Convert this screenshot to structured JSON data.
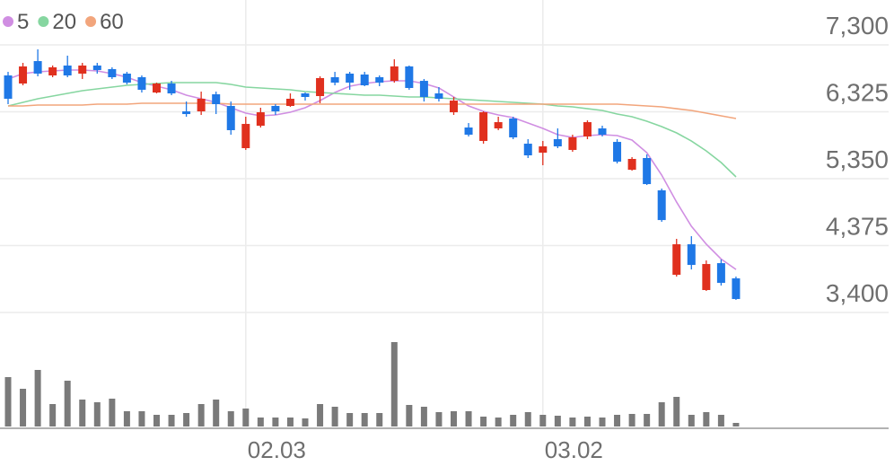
{
  "chart_data": {
    "type": "candlestick",
    "categories": [
      null,
      null,
      null,
      null,
      null,
      null,
      null,
      null,
      null,
      null,
      null,
      null,
      null,
      null,
      null,
      null,
      "02.03",
      null,
      null,
      null,
      null,
      null,
      null,
      null,
      null,
      null,
      null,
      null,
      null,
      null,
      null,
      null,
      null,
      null,
      null,
      null,
      "03.02",
      null,
      null,
      null,
      null,
      null,
      null,
      null,
      null,
      null,
      null,
      null,
      null,
      null
    ],
    "open": [
      6855,
      6737,
      7064,
      6855,
      6999,
      6881,
      6999,
      6947,
      6881,
      6829,
      6606,
      6737,
      6331,
      6331,
      6580,
      6410,
      5795,
      6122,
      6410,
      6410,
      6593,
      6554,
      6829,
      6881,
      6868,
      6829,
      6776,
      6986,
      6776,
      6593,
      6318,
      6096,
      5900,
      6083,
      6227,
      5860,
      5729,
      5926,
      5769,
      5965,
      6083,
      5886,
      5480,
      5651,
      5180,
      3949,
      4394,
      3727,
      4119,
      3897
    ],
    "high": [
      6907,
      7038,
      7235,
      7000,
      7143,
      7038,
      7038,
      6973,
      6907,
      6855,
      6750,
      6776,
      6475,
      6619,
      6619,
      6475,
      6253,
      6384,
      6436,
      6593,
      6606,
      6842,
      6907,
      6907,
      6907,
      6855,
      7090,
      6999,
      6803,
      6685,
      6541,
      6161,
      6331,
      6253,
      6253,
      5926,
      5900,
      6083,
      5991,
      6200,
      6122,
      5926,
      5664,
      5703,
      5206,
      4473,
      4512,
      4158,
      4172,
      3923
    ],
    "low": [
      6436,
      6711,
      6842,
      6829,
      6829,
      6803,
      6881,
      6803,
      6724,
      6606,
      6593,
      6567,
      6253,
      6279,
      6292,
      5991,
      5769,
      6096,
      6279,
      6397,
      6488,
      6449,
      6711,
      6646,
      6698,
      6698,
      6750,
      6646,
      6475,
      6475,
      6279,
      5965,
      5860,
      6057,
      5926,
      5651,
      5546,
      5795,
      5742,
      5926,
      5965,
      5572,
      5467,
      5258,
      4721,
      3923,
      4027,
      3714,
      3792,
      3583
    ],
    "close": [
      6515,
      6986,
      6881,
      6973,
      6855,
      6999,
      6933,
      6829,
      6750,
      6646,
      6737,
      6593,
      6292,
      6515,
      6436,
      6057,
      6148,
      6318,
      6331,
      6515,
      6541,
      6816,
      6750,
      6750,
      6711,
      6750,
      6986,
      6672,
      6541,
      6515,
      6488,
      5991,
      6318,
      6174,
      5952,
      5690,
      5821,
      5821,
      5952,
      6174,
      5991,
      5598,
      5638,
      5271,
      4747,
      4394,
      4093,
      4106,
      3831,
      3596
    ],
    "up_color": "#e0301e",
    "down_color": "#1f78e6",
    "ylim": [
      3400,
      7300
    ],
    "yticks": [
      {
        "value": 3400,
        "label": "3,400"
      },
      {
        "value": 4375,
        "label": "4,375"
      },
      {
        "value": 5350,
        "label": "5,350"
      },
      {
        "value": 6325,
        "label": "6,325"
      },
      {
        "value": 7300,
        "label": "7,300"
      }
    ],
    "grid": true,
    "series": [
      {
        "name": "5",
        "color": "#d08ee2",
        "values": [
          6803,
          6881,
          6907,
          6920,
          6933,
          6933,
          6920,
          6881,
          6829,
          6750,
          6698,
          6646,
          6567,
          6515,
          6462,
          6384,
          6305,
          6266,
          6279,
          6318,
          6384,
          6488,
          6606,
          6698,
          6737,
          6763,
          6776,
          6776,
          6737,
          6672,
          6541,
          6410,
          6331,
          6279,
          6240,
          6161,
          6083,
          5991,
          5952,
          5978,
          5991,
          5978,
          5913,
          5729,
          5402,
          5009,
          4656,
          4394,
          4179,
          4027
        ]
      },
      {
        "name": "20",
        "color": "#86d6a0",
        "values": [
          6410,
          6462,
          6515,
          6554,
          6593,
          6633,
          6659,
          6685,
          6711,
          6724,
          6737,
          6750,
          6750,
          6750,
          6750,
          6724,
          6685,
          6672,
          6659,
          6646,
          6619,
          6606,
          6593,
          6580,
          6567,
          6567,
          6554,
          6541,
          6541,
          6528,
          6515,
          6501,
          6488,
          6475,
          6462,
          6449,
          6436,
          6410,
          6397,
          6370,
          6344,
          6292,
          6253,
          6187,
          6109,
          6017,
          5899,
          5755,
          5585,
          5376
        ]
      },
      {
        "name": "60",
        "color": "#f2a57c",
        "values": [
          6410,
          6410,
          6423,
          6423,
          6423,
          6423,
          6436,
          6436,
          6436,
          6449,
          6449,
          6449,
          6449,
          6449,
          6449,
          6436,
          6436,
          6436,
          6436,
          6436,
          6436,
          6436,
          6436,
          6436,
          6436,
          6436,
          6436,
          6436,
          6436,
          6436,
          6436,
          6436,
          6436,
          6436,
          6436,
          6436,
          6436,
          6436,
          6436,
          6436,
          6436,
          6436,
          6423,
          6410,
          6397,
          6370,
          6344,
          6305,
          6266,
          6227
        ]
      }
    ],
    "volume": {
      "color": "#7a7a7a",
      "ylim": [
        0,
        100
      ],
      "values": [
        55,
        42,
        63,
        25,
        51,
        30,
        27,
        31,
        17,
        17,
        13,
        13,
        15,
        25,
        30,
        17,
        20,
        10,
        10,
        10,
        9,
        25,
        22,
        15,
        15,
        15,
        94,
        24,
        22,
        16,
        17,
        17,
        11,
        10,
        13,
        16,
        13,
        12,
        10,
        11,
        10,
        13,
        14,
        14,
        27,
        33,
        13,
        16,
        13,
        4
      ]
    }
  }
}
